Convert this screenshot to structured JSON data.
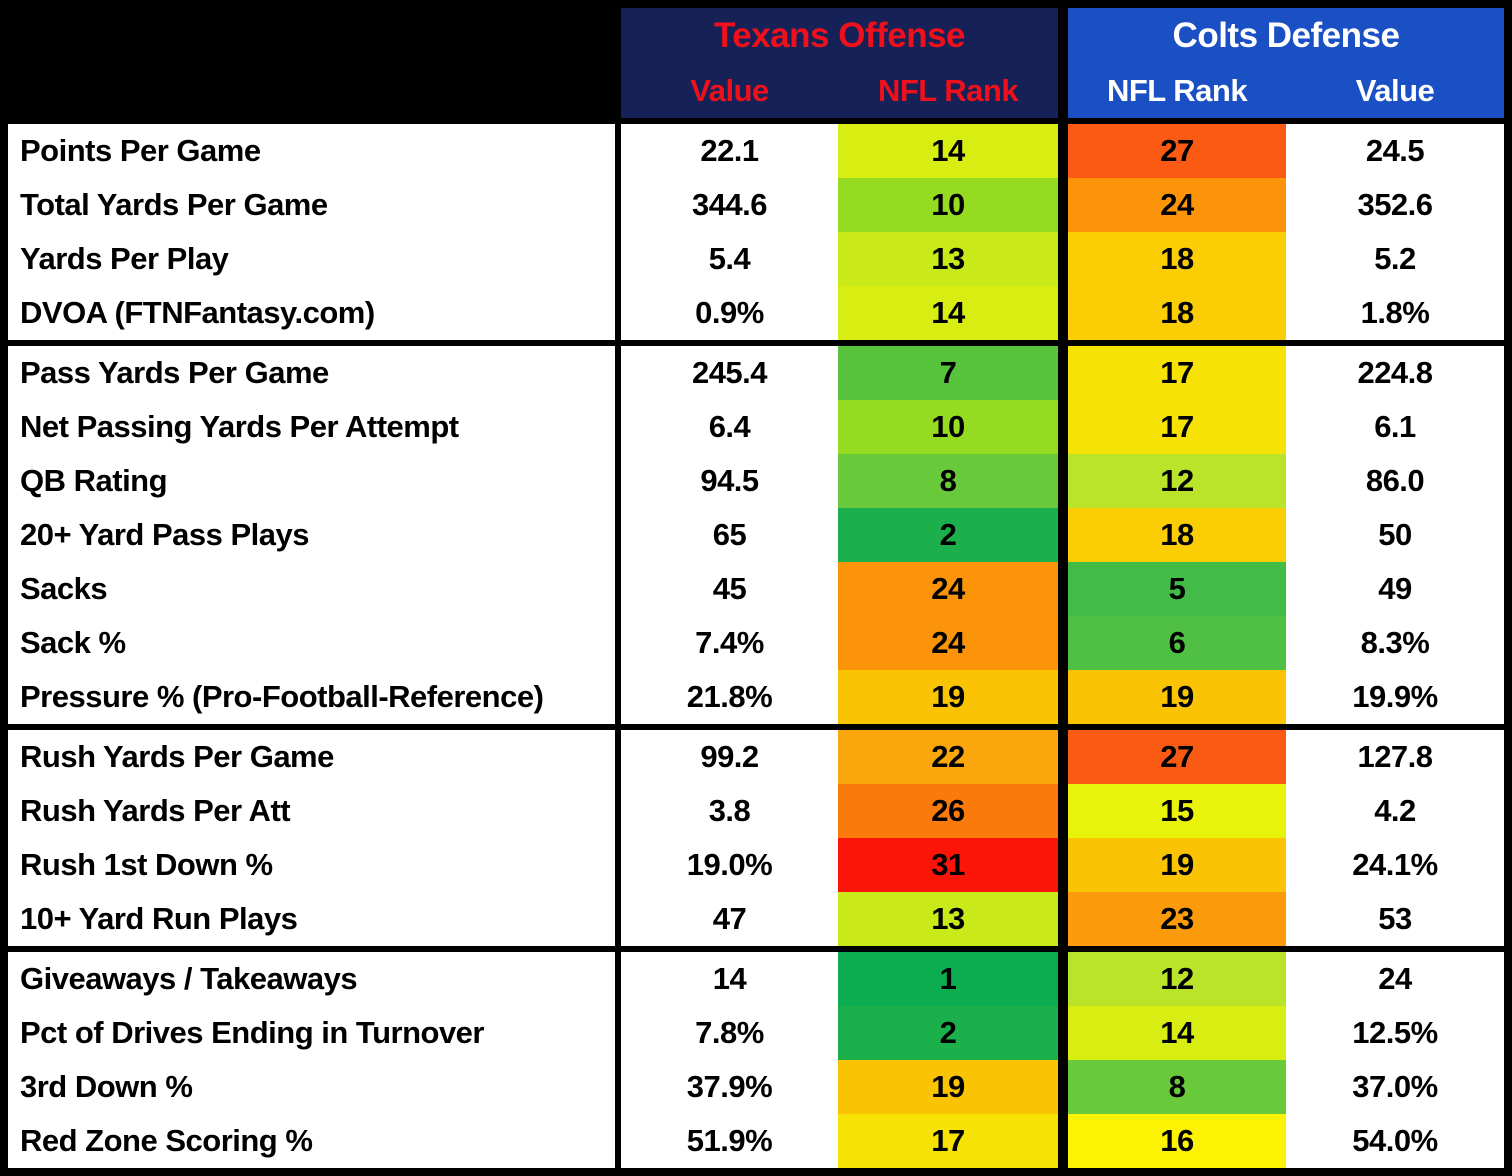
{
  "chart_data": {
    "type": "table",
    "title": "Texans Offense vs Colts Defense statistical comparison",
    "header": {
      "texans": {
        "title": "Texans Offense",
        "sub_left": "Value",
        "sub_right": "NFL Rank",
        "bg": "#162158",
        "text_color": "#EF101B"
      },
      "colts": {
        "title": "Colts Defense",
        "sub_left": "NFL Rank",
        "sub_right": "Value",
        "bg": "#1B50C4",
        "text_color": "#FFFFFF"
      }
    },
    "rank_color_scale": {
      "description": "NFL rank 1 (best, green) through 32 (worst, red), yellow mid-scale",
      "best_green": "#00B050",
      "mid_yellow": "#FBF303",
      "worst_red": "#FF0000"
    },
    "rank_colors": {
      "1": "#0CAC50",
      "2": "#1BB04C",
      "5": "#42BC46",
      "6": "#4FC043",
      "7": "#58C43E",
      "8": "#68C93A",
      "10": "#95DB22",
      "12": "#B9E42A",
      "13": "#C9E918",
      "14": "#D8EE12",
      "15": "#E9F20B",
      "16": "#FBF303",
      "17": "#F6E205",
      "18": "#FBCD05",
      "19": "#FAC303",
      "22": "#FAA60D",
      "23": "#FB9B0B",
      "24": "#FB9408",
      "26": "#FB7A0C",
      "27": "#FA5A14",
      "31": "#FB1508"
    },
    "sections": [
      {
        "rows": [
          {
            "stat": "Points Per Game",
            "texans_value": "22.1",
            "texans_rank": 14,
            "colts_rank": 27,
            "colts_value": "24.5"
          },
          {
            "stat": "Total Yards Per Game",
            "texans_value": "344.6",
            "texans_rank": 10,
            "colts_rank": 24,
            "colts_value": "352.6"
          },
          {
            "stat": "Yards Per Play",
            "texans_value": "5.4",
            "texans_rank": 13,
            "colts_rank": 18,
            "colts_value": "5.2"
          },
          {
            "stat": "DVOA (FTNFantasy.com)",
            "texans_value": "0.9%",
            "texans_rank": 14,
            "colts_rank": 18,
            "colts_value": "1.8%"
          }
        ]
      },
      {
        "rows": [
          {
            "stat": "Pass Yards Per Game",
            "texans_value": "245.4",
            "texans_rank": 7,
            "colts_rank": 17,
            "colts_value": "224.8"
          },
          {
            "stat": "Net Passing Yards Per Attempt",
            "texans_value": "6.4",
            "texans_rank": 10,
            "colts_rank": 17,
            "colts_value": "6.1"
          },
          {
            "stat": "QB Rating",
            "texans_value": "94.5",
            "texans_rank": 8,
            "colts_rank": 12,
            "colts_value": "86.0"
          },
          {
            "stat": "20+ Yard Pass Plays",
            "texans_value": "65",
            "texans_rank": 2,
            "colts_rank": 18,
            "colts_value": "50"
          },
          {
            "stat": "Sacks",
            "texans_value": "45",
            "texans_rank": 24,
            "colts_rank": 5,
            "colts_value": "49"
          },
          {
            "stat": "Sack %",
            "texans_value": "7.4%",
            "texans_rank": 24,
            "colts_rank": 6,
            "colts_value": "8.3%"
          },
          {
            "stat": "Pressure % (Pro-Football-Reference)",
            "texans_value": "21.8%",
            "texans_rank": 19,
            "colts_rank": 19,
            "colts_value": "19.9%"
          }
        ]
      },
      {
        "rows": [
          {
            "stat": "Rush Yards Per Game",
            "texans_value": "99.2",
            "texans_rank": 22,
            "colts_rank": 27,
            "colts_value": "127.8"
          },
          {
            "stat": "Rush Yards Per Att",
            "texans_value": "3.8",
            "texans_rank": 26,
            "colts_rank": 15,
            "colts_value": "4.2"
          },
          {
            "stat": "Rush 1st Down %",
            "texans_value": "19.0%",
            "texans_rank": 31,
            "colts_rank": 19,
            "colts_value": "24.1%"
          },
          {
            "stat": "10+ Yard Run Plays",
            "texans_value": "47",
            "texans_rank": 13,
            "colts_rank": 23,
            "colts_value": "53"
          }
        ]
      },
      {
        "rows": [
          {
            "stat": "Giveaways / Takeaways",
            "texans_value": "14",
            "texans_rank": 1,
            "colts_rank": 12,
            "colts_value": "24"
          },
          {
            "stat": "Pct of Drives Ending in Turnover",
            "texans_value": "7.8%",
            "texans_rank": 2,
            "colts_rank": 14,
            "colts_value": "12.5%"
          },
          {
            "stat": "3rd Down %",
            "texans_value": "37.9%",
            "texans_rank": 19,
            "colts_rank": 8,
            "colts_value": "37.0%"
          },
          {
            "stat": "Red Zone Scoring %",
            "texans_value": "51.9%",
            "texans_rank": 17,
            "colts_rank": 16,
            "colts_value": "54.0%"
          }
        ]
      }
    ]
  }
}
